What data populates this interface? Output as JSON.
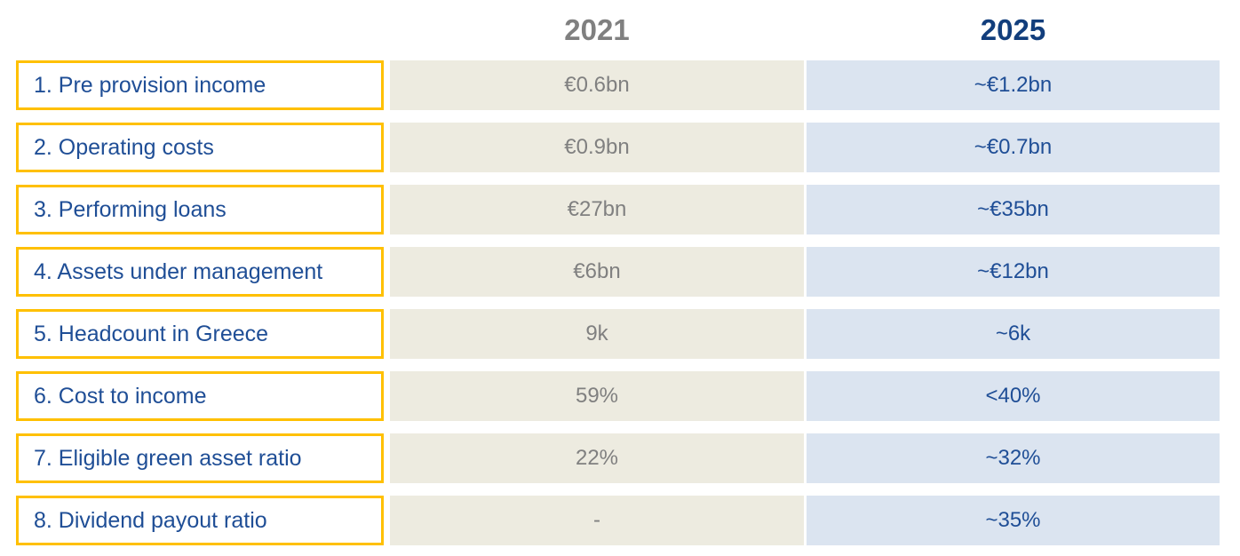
{
  "table": {
    "column_headers": [
      {
        "label": "2021"
      },
      {
        "label": "2025"
      }
    ],
    "rows": [
      {
        "label": "1. Pre provision income",
        "y2021": "€0.6bn",
        "y2025": "~€1.2bn"
      },
      {
        "label": "2. Operating costs",
        "y2021": "€0.9bn",
        "y2025": "~€0.7bn"
      },
      {
        "label": "3. Performing loans",
        "y2021": "€27bn",
        "y2025": "~€35bn"
      },
      {
        "label": "4. Assets under management",
        "y2021": "€6bn",
        "y2025": "~€12bn"
      },
      {
        "label": "5. Headcount in Greece",
        "y2021": "9k",
        "y2025": "~6k"
      },
      {
        "label": "6. Cost to income",
        "y2021": "59%",
        "y2025": "<40%"
      },
      {
        "label": "7. Eligible green asset ratio",
        "y2021": "22%",
        "y2025": "~32%"
      },
      {
        "label": "8. Dividend payout ratio",
        "y2021": "-",
        "y2025": "~35%"
      }
    ]
  },
  "colors": {
    "accent_border": "#FFC000",
    "col_2021_background": "#EDEBE0",
    "col_2025_background": "#DBE4F0",
    "header_2021_text": "#808080",
    "header_2025_text": "#123E7C",
    "value_2021_text": "#808080",
    "value_2025_text": "#1F4E96",
    "label_text": "#1F4E96"
  },
  "chart_data": {
    "type": "table",
    "title": "",
    "categories": [
      "1. Pre provision income",
      "2. Operating costs",
      "3. Performing loans",
      "4. Assets under management",
      "5. Headcount in Greece",
      "6. Cost to income",
      "7. Eligible green asset ratio",
      "8. Dividend payout ratio"
    ],
    "series": [
      {
        "name": "2021",
        "values": [
          "€0.6bn",
          "€0.9bn",
          "€27bn",
          "€6bn",
          "9k",
          "59%",
          "22%",
          "-"
        ]
      },
      {
        "name": "2025",
        "values": [
          "~€1.2bn",
          "~€0.7bn",
          "~€35bn",
          "~€12bn",
          "~6k",
          "<40%",
          "~32%",
          "~35%"
        ]
      }
    ],
    "legend_position": "top",
    "grid": false
  }
}
